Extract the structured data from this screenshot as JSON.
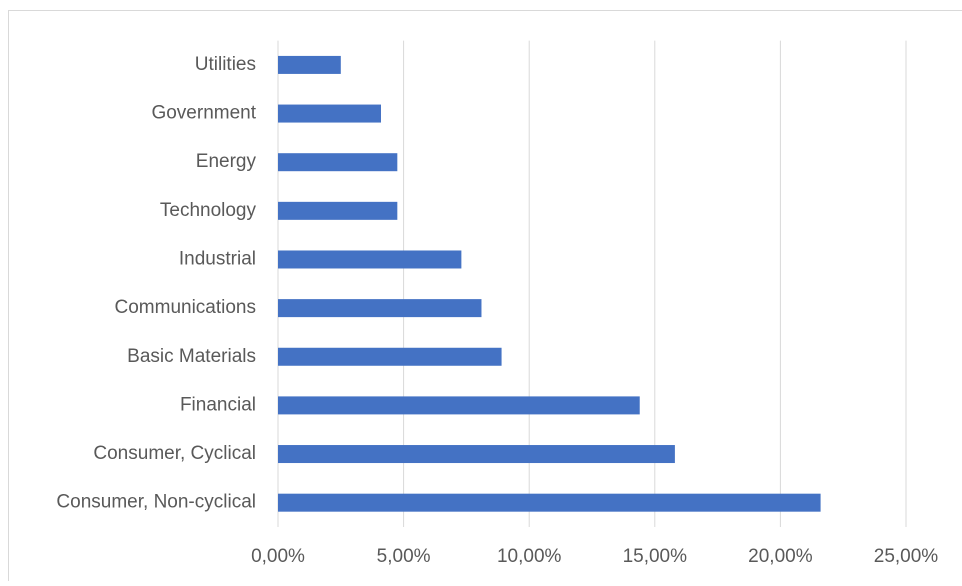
{
  "chart_data": {
    "type": "hbar",
    "categories": [
      "Utilities",
      "Government",
      "Energy",
      "Technology",
      "Industrial",
      "Communications",
      "Basic Materials",
      "Financial",
      "Consumer, Cyclical",
      "Consumer, Non-cyclical"
    ],
    "values": [
      2.5,
      4.1,
      4.75,
      4.75,
      7.3,
      8.1,
      8.9,
      14.4,
      15.8,
      21.6
    ],
    "color": "#4472c4",
    "xlim": [
      0,
      25
    ],
    "xticks": [
      {
        "value": 0,
        "label": "0,00%"
      },
      {
        "value": 5,
        "label": "5,00%"
      },
      {
        "value": 10,
        "label": "10,00%"
      },
      {
        "value": 15,
        "label": "15,00%"
      },
      {
        "value": 20,
        "label": "20,00%"
      },
      {
        "value": 25,
        "label": "25,00%"
      }
    ],
    "grid": true
  }
}
